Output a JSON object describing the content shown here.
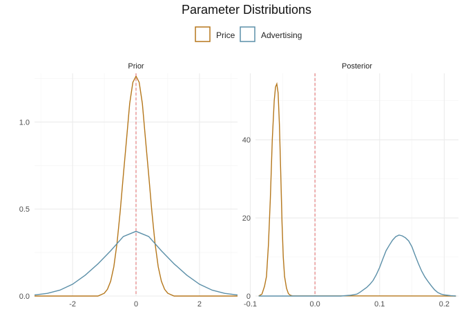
{
  "chart_data": {
    "type": "line",
    "title": "Parameter Distributions",
    "legend": {
      "placement": "top",
      "entries": [
        {
          "name": "Price",
          "color": "#b5771b"
        },
        {
          "name": "Advertising",
          "color": "#5b8fa8"
        }
      ]
    },
    "reference_line": {
      "x": 0,
      "color": "#e06666",
      "style": "dashed"
    },
    "grid": true,
    "panels": [
      {
        "title": "Prior",
        "xlim": [
          -3.2,
          3.2
        ],
        "ylim": [
          0,
          1.28
        ],
        "xticks": [
          {
            "value": -2,
            "label": "-2"
          },
          {
            "value": 0,
            "label": "0"
          },
          {
            "value": 2,
            "label": "2"
          }
        ],
        "yticks": [
          {
            "value": 0,
            "label": "0.0"
          },
          {
            "value": 0.5,
            "label": "0.5"
          },
          {
            "value": 1.0,
            "label": "1.0"
          }
        ],
        "series": [
          {
            "name": "Price",
            "color": "#b5771b",
            "x": [
              -3.2,
              -1.2,
              -1.0,
              -0.9,
              -0.8,
              -0.7,
              -0.6,
              -0.5,
              -0.4,
              -0.3,
              -0.2,
              -0.1,
              0.0,
              0.1,
              0.2,
              0.3,
              0.4,
              0.5,
              0.6,
              0.7,
              0.8,
              0.9,
              1.0,
              1.2,
              3.2
            ],
            "y": [
              0,
              0.0,
              0.016,
              0.039,
              0.085,
              0.168,
              0.302,
              0.484,
              0.695,
              0.898,
              1.106,
              1.228,
              1.264,
              1.228,
              1.106,
              0.898,
              0.695,
              0.484,
              0.302,
              0.168,
              0.085,
              0.039,
              0.016,
              0.0,
              0
            ]
          },
          {
            "name": "Advertising",
            "color": "#5b8fa8",
            "x": [
              -3.2,
              -2.8,
              -2.4,
              -2.0,
              -1.6,
              -1.2,
              -0.8,
              -0.4,
              0.0,
              0.4,
              0.8,
              1.2,
              1.6,
              2.0,
              2.4,
              2.8,
              3.2
            ],
            "y": [
              0.006,
              0.015,
              0.034,
              0.068,
              0.12,
              0.185,
              0.26,
              0.342,
              0.372,
              0.342,
              0.26,
              0.185,
              0.12,
              0.068,
              0.034,
              0.015,
              0.006
            ]
          }
        ]
      },
      {
        "title": "Posterior",
        "xlim": [
          -0.092,
          0.222
        ],
        "ylim": [
          0,
          57
        ],
        "xticks": [
          {
            "value": -0.1,
            "label": "-0.1"
          },
          {
            "value": 0.0,
            "label": "0.0"
          },
          {
            "value": 0.1,
            "label": "0.1"
          },
          {
            "value": 0.2,
            "label": "0.2"
          }
        ],
        "yticks": [
          {
            "value": 0,
            "label": "0"
          },
          {
            "value": 20,
            "label": "20"
          },
          {
            "value": 40,
            "label": "40"
          }
        ],
        "series": [
          {
            "name": "Price",
            "color": "#b5771b",
            "x": [
              -0.087,
              -0.082,
              -0.078,
              -0.075,
              -0.072,
              -0.069,
              -0.066,
              -0.063,
              -0.061,
              -0.059,
              -0.057,
              -0.055,
              -0.053,
              -0.051,
              -0.049,
              -0.047,
              -0.044,
              -0.041,
              -0.038,
              -0.035,
              0.218
            ],
            "y": [
              0,
              0.5,
              2.5,
              5,
              13,
              25,
              40,
              50,
              53.5,
              54.3,
              52,
              44,
              32,
              19,
              10,
              5,
              2,
              0.6,
              0.2,
              0.05,
              0
            ]
          },
          {
            "name": "Advertising",
            "color": "#5b8fa8",
            "x": [
              -0.087,
              0.04,
              0.055,
              0.065,
              0.07,
              0.075,
              0.08,
              0.085,
              0.09,
              0.095,
              0.1,
              0.105,
              0.11,
              0.115,
              0.12,
              0.125,
              0.13,
              0.135,
              0.14,
              0.145,
              0.15,
              0.155,
              0.16,
              0.165,
              0.17,
              0.175,
              0.18,
              0.185,
              0.19,
              0.195,
              0.2,
              0.205,
              0.21,
              0.218
            ],
            "y": [
              0,
              0.0,
              0.2,
              0.5,
              1.0,
              1.6,
              2.2,
              3.0,
              4.0,
              5.5,
              7.3,
              9.5,
              11.6,
              13.0,
              14.3,
              15.2,
              15.6,
              15.4,
              14.9,
              14.1,
              12.6,
              10.4,
              8.3,
              6.4,
              4.9,
              3.7,
              2.6,
              1.6,
              0.9,
              0.5,
              0.3,
              0.2,
              0.1,
              0.0
            ]
          }
        ]
      }
    ]
  }
}
